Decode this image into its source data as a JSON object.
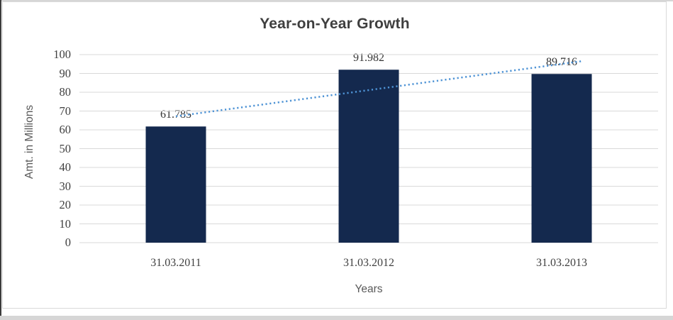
{
  "window": {
    "background": "#ffffff",
    "frame_color": "#d6d6d6",
    "left_edge_color": "#3c3c3c"
  },
  "chart_data": {
    "type": "bar",
    "title": "Year-on-Year Growth",
    "categories": [
      "31.03.2011",
      "31.03.2012",
      "31.03.2013"
    ],
    "values": [
      61.785,
      91.982,
      89.716
    ],
    "data_labels": [
      "61.785",
      "91.982",
      "89.716"
    ],
    "xlabel": "Years",
    "ylabel": "Amt. in Millions",
    "ylim": [
      0,
      100
    ],
    "yticks": [
      0,
      10,
      20,
      30,
      40,
      50,
      60,
      70,
      80,
      90,
      100
    ],
    "grid": true,
    "legend": "none",
    "bar_color": "#14294e",
    "gridline_color": "#d9d9d9",
    "title_color": "#3f3f3f",
    "tick_label_color": "#404040",
    "axis_title_color": "#595959",
    "trendline": {
      "type": "linear",
      "style": "dotted",
      "color": "#4e93d5",
      "start_value": 67.2,
      "end_value": 96.6
    }
  }
}
